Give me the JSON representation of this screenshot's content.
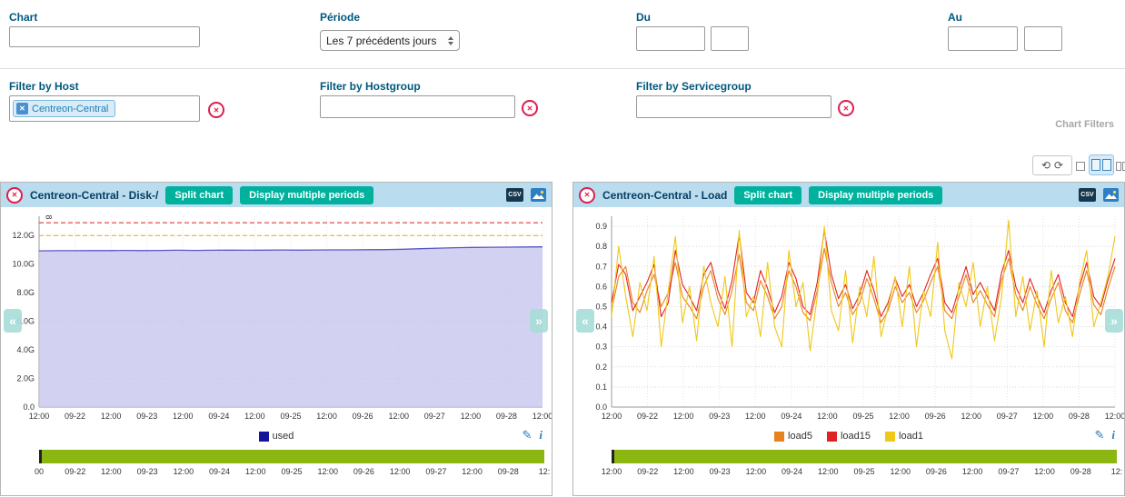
{
  "filters": {
    "chart": {
      "label": "Chart",
      "value": ""
    },
    "periode": {
      "label": "Période",
      "value": "Les 7 précédents jours"
    },
    "du": {
      "label": "Du",
      "date": "",
      "time": ""
    },
    "au": {
      "label": "Au",
      "date": "",
      "time": ""
    },
    "host": {
      "label": "Filter by Host",
      "tag": "Centreon-Central"
    },
    "hostgroup": {
      "label": "Filter by Hostgroup",
      "value": ""
    },
    "servicegroup": {
      "label": "Filter by Servicegroup",
      "value": ""
    },
    "section_label": "Chart Filters"
  },
  "toolbar": {
    "refresh_icons": [
      "manual-refresh",
      "auto-refresh"
    ],
    "views": [
      "single-column",
      "two-column",
      "three-column"
    ],
    "selected_view": "two-column"
  },
  "panels": [
    {
      "title": "Centreon-Central - Disk-/",
      "split_label": "Split chart",
      "periods_label": "Display multiple periods",
      "csv_label": "CSV",
      "rotated_label": "8"
    },
    {
      "title": "Centreon-Central - Load",
      "split_label": "Split chart",
      "periods_label": "Display multiple periods",
      "csv_label": "CSV"
    }
  ],
  "chart_data": [
    {
      "type": "area",
      "title": "Centreon-Central - Disk-/",
      "ylim": [
        0,
        13.35
      ],
      "yticks": [
        {
          "v": 0,
          "label": "0.0"
        },
        {
          "v": 2,
          "label": "2.0G"
        },
        {
          "v": 4,
          "label": "4.0G"
        },
        {
          "v": 6,
          "label": "6.0G"
        },
        {
          "v": 8,
          "label": "8.0G"
        },
        {
          "v": 10,
          "label": "10.0G"
        },
        {
          "v": 12,
          "label": "12.0G"
        }
      ],
      "xticks": [
        "12:00",
        "09-22",
        "12:00",
        "09-23",
        "12:00",
        "09-24",
        "12:00",
        "09-25",
        "12:00",
        "09-26",
        "12:00",
        "09-27",
        "12:00",
        "09-28",
        "12:00"
      ],
      "timeline_ticks": [
        "00",
        "09-22",
        "12:00",
        "09-23",
        "12:00",
        "09-24",
        "12:00",
        "09-25",
        "12:00",
        "09-26",
        "12:00",
        "09-27",
        "12:00",
        "09-28",
        "12:"
      ],
      "series": [
        {
          "name": "used",
          "color": "#15159b",
          "stroke": "#5a57c8",
          "fill": "#c7c5ef",
          "type": "area",
          "values": [
            10.93,
            10.94,
            10.94,
            10.95,
            10.95,
            10.96,
            10.95,
            10.96,
            10.97,
            10.96,
            10.97,
            10.98,
            10.97,
            10.98,
            10.99,
            10.98,
            10.99,
            11.0,
            11.0,
            11.01,
            11.02,
            11.04,
            11.08,
            11.12,
            11.15,
            11.17,
            11.18,
            11.19,
            11.2,
            11.21
          ]
        }
      ],
      "thresholds": [
        {
          "value": 12.0,
          "color": "#f5a21d"
        },
        {
          "value": 12.9,
          "color": "#e01e1e"
        }
      ]
    },
    {
      "type": "line",
      "title": "Centreon-Central - Load",
      "ylim": [
        0,
        0.95
      ],
      "yticks": [
        {
          "v": 0,
          "label": "0.0"
        },
        {
          "v": 0.1,
          "label": "0.1"
        },
        {
          "v": 0.2,
          "label": "0.2"
        },
        {
          "v": 0.3,
          "label": "0.3"
        },
        {
          "v": 0.4,
          "label": "0.4"
        },
        {
          "v": 0.5,
          "label": "0.5"
        },
        {
          "v": 0.6,
          "label": "0.6"
        },
        {
          "v": 0.7,
          "label": "0.7"
        },
        {
          "v": 0.8,
          "label": "0.8"
        },
        {
          "v": 0.9,
          "label": "0.9"
        }
      ],
      "xticks": [
        "12:00",
        "09-22",
        "12:00",
        "09-23",
        "12:00",
        "09-24",
        "12:00",
        "09-25",
        "12:00",
        "09-26",
        "12:00",
        "09-27",
        "12:00",
        "09-28",
        "12:00"
      ],
      "timeline_ticks": [
        "12:00",
        "09-22",
        "12:00",
        "09-23",
        "12:00",
        "09-24",
        "12:00",
        "09-25",
        "12:00",
        "09-26",
        "12:00",
        "09-27",
        "12:00",
        "09-28",
        "12:"
      ],
      "series": [
        {
          "name": "load5",
          "color": "#e8821e",
          "values": [
            0.48,
            0.65,
            0.7,
            0.52,
            0.47,
            0.58,
            0.66,
            0.5,
            0.57,
            0.72,
            0.55,
            0.5,
            0.44,
            0.6,
            0.68,
            0.54,
            0.46,
            0.58,
            0.76,
            0.52,
            0.48,
            0.63,
            0.55,
            0.44,
            0.5,
            0.68,
            0.6,
            0.47,
            0.43,
            0.58,
            0.79,
            0.62,
            0.5,
            0.57,
            0.46,
            0.52,
            0.64,
            0.54,
            0.42,
            0.48,
            0.6,
            0.52,
            0.57,
            0.47,
            0.53,
            0.62,
            0.7,
            0.48,
            0.44,
            0.55,
            0.66,
            0.52,
            0.58,
            0.51,
            0.45,
            0.63,
            0.74,
            0.56,
            0.48,
            0.6,
            0.51,
            0.44,
            0.54,
            0.62,
            0.48,
            0.42,
            0.56,
            0.68,
            0.51,
            0.46,
            0.59,
            0.7
          ]
        },
        {
          "name": "load15",
          "color": "#e22222",
          "values": [
            0.52,
            0.71,
            0.66,
            0.48,
            0.55,
            0.62,
            0.71,
            0.45,
            0.52,
            0.78,
            0.61,
            0.55,
            0.48,
            0.66,
            0.72,
            0.58,
            0.49,
            0.63,
            0.86,
            0.57,
            0.52,
            0.68,
            0.59,
            0.47,
            0.55,
            0.72,
            0.64,
            0.5,
            0.46,
            0.62,
            0.88,
            0.66,
            0.54,
            0.61,
            0.49,
            0.56,
            0.68,
            0.58,
            0.45,
            0.52,
            0.64,
            0.55,
            0.61,
            0.5,
            0.57,
            0.66,
            0.74,
            0.52,
            0.47,
            0.59,
            0.7,
            0.56,
            0.62,
            0.55,
            0.48,
            0.67,
            0.78,
            0.6,
            0.52,
            0.64,
            0.55,
            0.47,
            0.58,
            0.66,
            0.52,
            0.45,
            0.6,
            0.72,
            0.55,
            0.5,
            0.63,
            0.74
          ]
        },
        {
          "name": "load1",
          "color": "#f0c818",
          "values": [
            0.45,
            0.8,
            0.55,
            0.35,
            0.62,
            0.48,
            0.75,
            0.3,
            0.58,
            0.85,
            0.42,
            0.6,
            0.33,
            0.7,
            0.52,
            0.4,
            0.65,
            0.3,
            0.88,
            0.45,
            0.55,
            0.35,
            0.72,
            0.4,
            0.3,
            0.78,
            0.5,
            0.62,
            0.28,
            0.55,
            0.9,
            0.48,
            0.38,
            0.68,
            0.32,
            0.6,
            0.45,
            0.75,
            0.35,
            0.5,
            0.65,
            0.4,
            0.7,
            0.3,
            0.58,
            0.45,
            0.82,
            0.38,
            0.24,
            0.62,
            0.5,
            0.72,
            0.4,
            0.6,
            0.33,
            0.55,
            0.93,
            0.45,
            0.65,
            0.38,
            0.58,
            0.3,
            0.68,
            0.42,
            0.55,
            0.35,
            0.62,
            0.78,
            0.4,
            0.52,
            0.65,
            0.85
          ]
        }
      ],
      "thresholds": []
    }
  ]
}
